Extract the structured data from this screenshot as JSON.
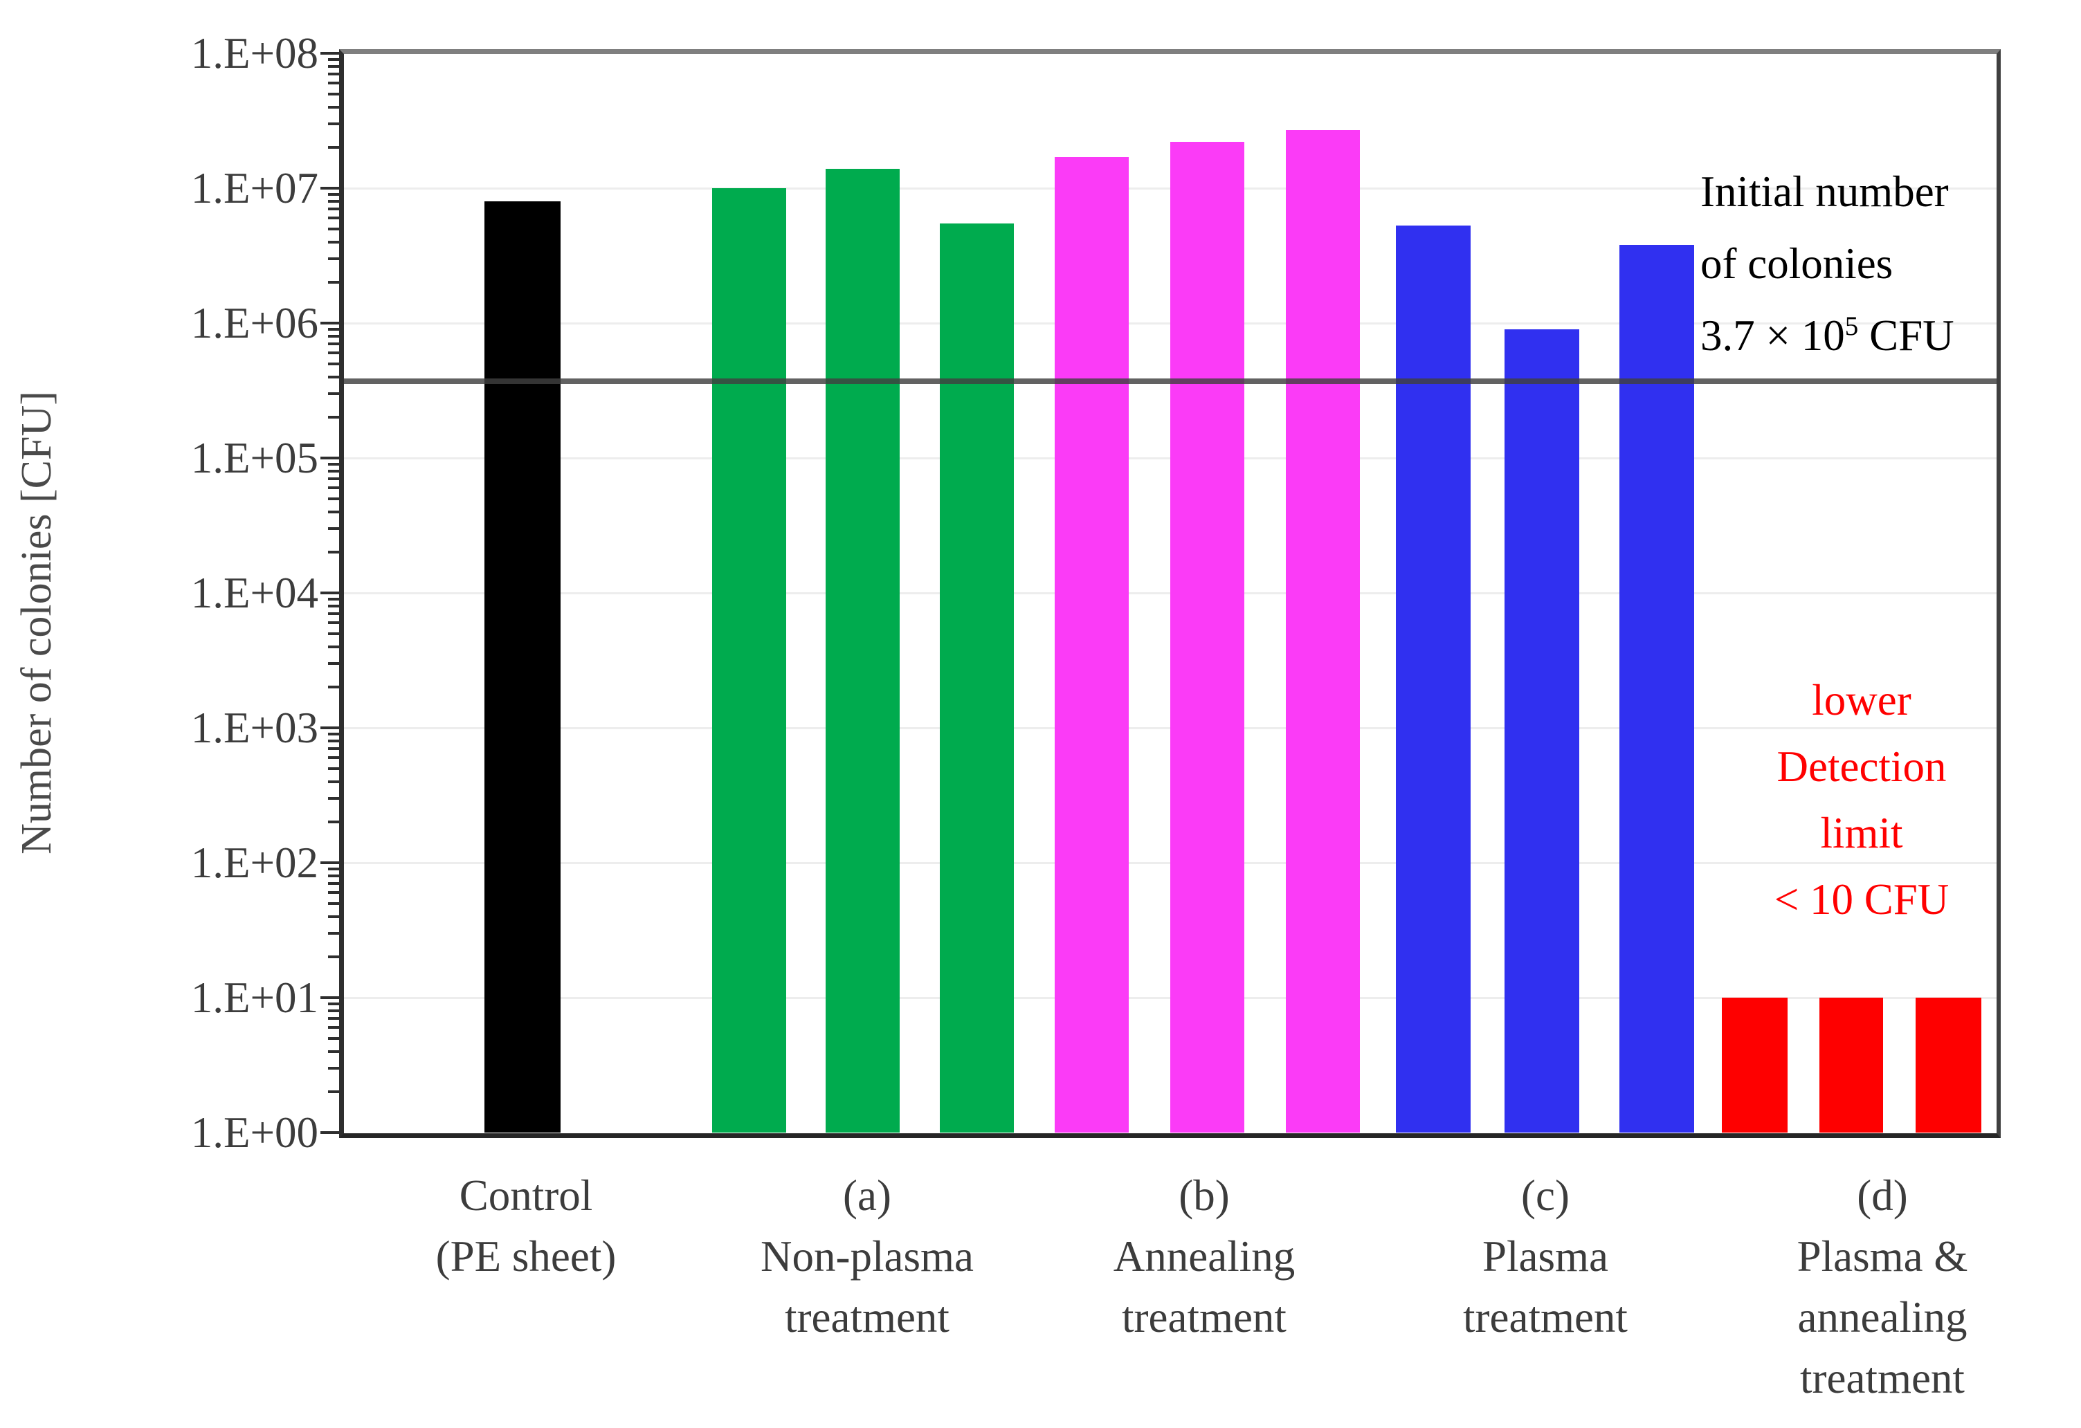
{
  "figure": {
    "y_axis_title": "Number of colonies [CFU]",
    "annotation_initial": {
      "line1": "Initial number",
      "line2": "of colonies",
      "value_prefix": "3.7 × 10",
      "value_sup": "5",
      "value_suffix": " CFU"
    },
    "annotation_detection": {
      "lines": [
        "lower",
        "Detection",
        "limit",
        "< 10 CFU"
      ],
      "color": "#ff0000"
    }
  },
  "chart_data": {
    "type": "bar",
    "title": "",
    "xlabel": "",
    "ylabel": "Number of colonies [CFU]",
    "y_scale": "log10",
    "ylim": [
      1,
      100000000
    ],
    "grid": "horizontal decade gridlines, light gray",
    "legend": "none",
    "y_tick_labels": [
      "1.E+00",
      "1.E+01",
      "1.E+02",
      "1.E+03",
      "1.E+04",
      "1.E+05",
      "1.E+06",
      "1.E+07",
      "1.E+08"
    ],
    "categories": [
      "Control (PE sheet)",
      "(a) Non-plasma treatment",
      "(b) Annealing treatment",
      "(c) Plasma treatment",
      "(d) Plasma & annealing treatment"
    ],
    "category_label_lines": [
      [
        "Control",
        "(PE sheet)"
      ],
      [
        "(a)",
        "Non-plasma",
        "treatment"
      ],
      [
        "(b)",
        "Annealing",
        "treatment"
      ],
      [
        "(c)",
        "Plasma",
        "treatment"
      ],
      [
        "(d)",
        "Plasma &",
        "annealing",
        "treatment"
      ]
    ],
    "groups": [
      {
        "category": "Control (PE sheet)",
        "color": "#000000",
        "values": [
          8000000
        ]
      },
      {
        "category": "(a) Non-plasma treatment",
        "color": "#00ab4e",
        "values": [
          10000000,
          14000000,
          5500000
        ]
      },
      {
        "category": "(b) Annealing treatment",
        "color": "#fb3bf7",
        "values": [
          17000000,
          22000000,
          27000000
        ]
      },
      {
        "category": "(c) Plasma treatment",
        "color": "#3030f0",
        "values": [
          5300000,
          900000,
          3800000
        ]
      },
      {
        "category": "(d) Plasma & annealing treatment",
        "color": "#fe0000",
        "values": [
          10,
          10,
          10
        ]
      }
    ],
    "reference_line": {
      "value": 370000,
      "label": "Initial number of colonies 3.7 × 10⁵ CFU",
      "color": "#404040"
    },
    "detection_limit_note": "lower Detection limit < 10 CFU (red bars plotted at 10 CFU)"
  }
}
